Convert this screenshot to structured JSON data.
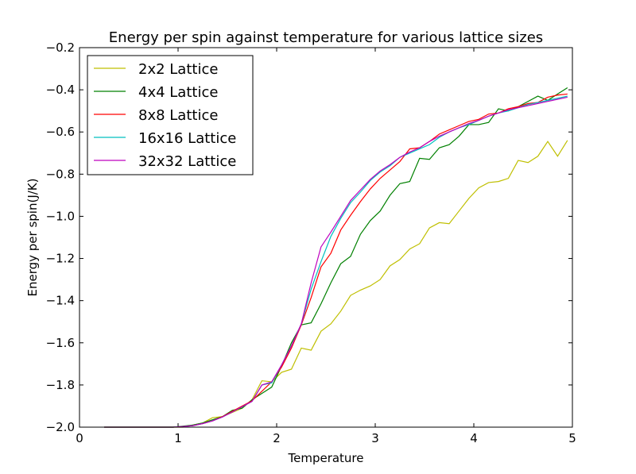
{
  "chart_data": {
    "type": "line",
    "title": "Energy per spin against temperature for various lattice sizes",
    "xlabel": "Temperature",
    "ylabel": "Energy per spin(J/K)",
    "xlim": [
      0,
      5
    ],
    "ylim": [
      -2.0,
      -0.2
    ],
    "xticks": [
      0,
      1,
      2,
      3,
      4,
      5
    ],
    "xtick_labels": [
      "0",
      "1",
      "2",
      "3",
      "4",
      "5"
    ],
    "yticks": [
      -2.0,
      -1.8,
      -1.6,
      -1.4,
      -1.2,
      -1.0,
      -0.8,
      -0.6,
      -0.4,
      -0.2
    ],
    "ytick_labels": [
      "−2.0",
      "−1.8",
      "−1.6",
      "−1.4",
      "−1.2",
      "−1.0",
      "−0.8",
      "−0.6",
      "−0.4",
      "−0.2"
    ],
    "legend_position": "top-left",
    "series": [
      {
        "name": "2x2 Lattice",
        "color": "#bfbf00",
        "x": [
          0.25,
          0.35,
          0.45,
          0.55,
          0.65,
          0.75,
          0.85,
          0.95,
          1.05,
          1.15,
          1.25,
          1.35,
          1.45,
          1.55,
          1.65,
          1.75,
          1.85,
          1.95,
          2.05,
          2.15,
          2.25,
          2.35,
          2.45,
          2.55,
          2.65,
          2.75,
          2.85,
          2.95,
          3.05,
          3.15,
          3.25,
          3.35,
          3.45,
          3.55,
          3.65,
          3.75,
          3.85,
          3.95,
          4.05,
          4.15,
          4.25,
          4.35,
          4.45,
          4.55,
          4.65,
          4.75,
          4.85,
          4.95
        ],
        "y": [
          -2.0,
          -2.0,
          -2.0,
          -2.0,
          -2.0,
          -2.0,
          -2.0,
          -2.0,
          -2.0,
          -1.99,
          -1.98,
          -1.955,
          -1.95,
          -1.93,
          -1.91,
          -1.87,
          -1.78,
          -1.785,
          -1.74,
          -1.725,
          -1.625,
          -1.635,
          -1.545,
          -1.51,
          -1.45,
          -1.375,
          -1.35,
          -1.33,
          -1.3,
          -1.235,
          -1.205,
          -1.155,
          -1.13,
          -1.055,
          -1.03,
          -1.035,
          -0.975,
          -0.915,
          -0.865,
          -0.84,
          -0.835,
          -0.82,
          -0.735,
          -0.745,
          -0.715,
          -0.645,
          -0.715,
          -0.64
        ]
      },
      {
        "name": "4x4 Lattice",
        "color": "#008000",
        "x": [
          0.25,
          0.35,
          0.45,
          0.55,
          0.65,
          0.75,
          0.85,
          0.95,
          1.05,
          1.15,
          1.25,
          1.35,
          1.45,
          1.55,
          1.65,
          1.75,
          1.85,
          1.95,
          2.05,
          2.15,
          2.25,
          2.35,
          2.45,
          2.55,
          2.65,
          2.75,
          2.85,
          2.95,
          3.05,
          3.15,
          3.25,
          3.35,
          3.45,
          3.55,
          3.65,
          3.75,
          3.85,
          3.95,
          4.05,
          4.15,
          4.25,
          4.35,
          4.45,
          4.55,
          4.65,
          4.75,
          4.85,
          4.95
        ],
        "y": [
          -2.0,
          -2.0,
          -2.0,
          -2.0,
          -2.0,
          -2.0,
          -2.0,
          -2.0,
          -1.995,
          -1.99,
          -1.98,
          -1.965,
          -1.95,
          -1.92,
          -1.91,
          -1.87,
          -1.84,
          -1.81,
          -1.71,
          -1.6,
          -1.515,
          -1.505,
          -1.415,
          -1.315,
          -1.225,
          -1.19,
          -1.085,
          -1.02,
          -0.975,
          -0.9,
          -0.845,
          -0.835,
          -0.725,
          -0.73,
          -0.675,
          -0.66,
          -0.62,
          -0.565,
          -0.565,
          -0.555,
          -0.49,
          -0.5,
          -0.48,
          -0.455,
          -0.43,
          -0.45,
          -0.42,
          -0.39
        ]
      },
      {
        "name": "8x8 Lattice",
        "color": "#ff0000",
        "x": [
          0.25,
          0.35,
          0.45,
          0.55,
          0.65,
          0.75,
          0.85,
          0.95,
          1.05,
          1.15,
          1.25,
          1.35,
          1.45,
          1.55,
          1.65,
          1.75,
          1.85,
          1.95,
          2.05,
          2.15,
          2.25,
          2.35,
          2.45,
          2.55,
          2.65,
          2.75,
          2.85,
          2.95,
          3.05,
          3.15,
          3.25,
          3.35,
          3.45,
          3.55,
          3.65,
          3.75,
          3.85,
          3.95,
          4.05,
          4.15,
          4.25,
          4.35,
          4.45,
          4.55,
          4.65,
          4.75,
          4.85,
          4.95
        ],
        "y": [
          -2.0,
          -2.0,
          -2.0,
          -2.0,
          -2.0,
          -2.0,
          -2.0,
          -2.0,
          -1.997,
          -1.993,
          -1.983,
          -1.97,
          -1.95,
          -1.925,
          -1.9,
          -1.875,
          -1.83,
          -1.785,
          -1.715,
          -1.625,
          -1.515,
          -1.385,
          -1.24,
          -1.175,
          -1.065,
          -0.995,
          -0.93,
          -0.87,
          -0.82,
          -0.78,
          -0.74,
          -0.68,
          -0.675,
          -0.645,
          -0.61,
          -0.59,
          -0.57,
          -0.55,
          -0.54,
          -0.515,
          -0.51,
          -0.49,
          -0.48,
          -0.465,
          -0.46,
          -0.435,
          -0.425,
          -0.42
        ]
      },
      {
        "name": "16x16 Lattice",
        "color": "#00bfbf",
        "x": [
          0.25,
          0.35,
          0.45,
          0.55,
          0.65,
          0.75,
          0.85,
          0.95,
          1.05,
          1.15,
          1.25,
          1.35,
          1.45,
          1.55,
          1.65,
          1.75,
          1.85,
          1.95,
          2.05,
          2.15,
          2.25,
          2.35,
          2.45,
          2.55,
          2.65,
          2.75,
          2.85,
          2.95,
          3.05,
          3.15,
          3.25,
          3.35,
          3.45,
          3.55,
          3.65,
          3.75,
          3.85,
          3.95,
          4.05,
          4.15,
          4.25,
          4.35,
          4.45,
          4.55,
          4.65,
          4.75,
          4.85,
          4.95
        ],
        "y": [
          -2.0,
          -2.0,
          -2.0,
          -2.0,
          -2.0,
          -2.0,
          -2.0,
          -2.0,
          -1.997,
          -1.993,
          -1.983,
          -1.97,
          -1.952,
          -1.928,
          -1.903,
          -1.878,
          -1.8,
          -1.79,
          -1.705,
          -1.615,
          -1.51,
          -1.345,
          -1.215,
          -1.095,
          -1.01,
          -0.935,
          -0.885,
          -0.83,
          -0.79,
          -0.76,
          -0.72,
          -0.7,
          -0.68,
          -0.66,
          -0.625,
          -0.6,
          -0.58,
          -0.565,
          -0.545,
          -0.525,
          -0.51,
          -0.5,
          -0.485,
          -0.47,
          -0.46,
          -0.45,
          -0.44,
          -0.43
        ]
      },
      {
        "name": "32x32 Lattice",
        "color": "#bf00bf",
        "x": [
          0.25,
          0.35,
          0.45,
          0.55,
          0.65,
          0.75,
          0.85,
          0.95,
          1.05,
          1.15,
          1.25,
          1.35,
          1.45,
          1.55,
          1.65,
          1.75,
          1.85,
          1.95,
          2.05,
          2.15,
          2.25,
          2.35,
          2.45,
          2.55,
          2.65,
          2.75,
          2.85,
          2.95,
          3.05,
          3.15,
          3.25,
          3.35,
          3.45,
          3.55,
          3.65,
          3.75,
          3.85,
          3.95,
          4.05,
          4.15,
          4.25,
          4.35,
          4.45,
          4.55,
          4.65,
          4.75,
          4.85,
          4.95
        ],
        "y": [
          -2.0,
          -2.0,
          -2.0,
          -2.0,
          -2.0,
          -2.0,
          -2.0,
          -2.0,
          -1.997,
          -1.993,
          -1.983,
          -1.97,
          -1.952,
          -1.928,
          -1.903,
          -1.878,
          -1.8,
          -1.785,
          -1.705,
          -1.615,
          -1.51,
          -1.315,
          -1.145,
          -1.075,
          -1.0,
          -0.925,
          -0.875,
          -0.825,
          -0.785,
          -0.755,
          -0.72,
          -0.695,
          -0.675,
          -0.645,
          -0.62,
          -0.6,
          -0.58,
          -0.56,
          -0.545,
          -0.525,
          -0.51,
          -0.495,
          -0.485,
          -0.475,
          -0.465,
          -0.455,
          -0.445,
          -0.435
        ]
      }
    ]
  }
}
